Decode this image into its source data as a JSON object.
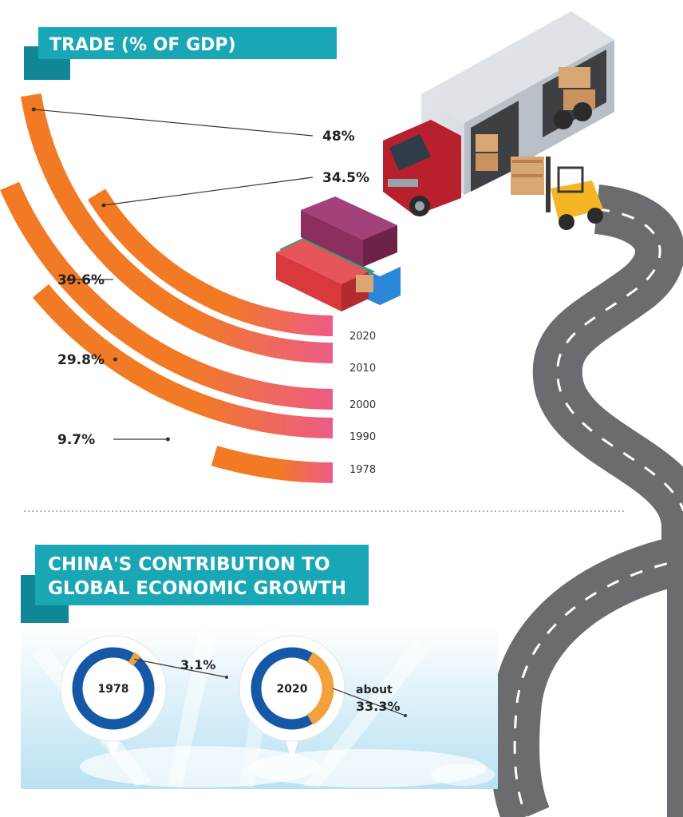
{
  "trade_section": {
    "title": "TRADE (% OF GDP)"
  },
  "contribution_section": {
    "title_line1": "CHINA'S CONTRIBUTION TO",
    "title_line2": "GLOBAL ECONOMIC GROWTH"
  },
  "colors": {
    "teal": "#19a7b5",
    "teal_dark": "#0f8796",
    "orange": "#f27a24",
    "pink": "#ec5b87",
    "blue": "#1658a8",
    "light_orange": "#f2a13d",
    "road": "#6b6c6f"
  },
  "chart_data": [
    {
      "type": "bar",
      "title": "TRADE (% OF GDP)",
      "categories": [
        "1978",
        "1990",
        "2000",
        "2010",
        "2020"
      ],
      "values": [
        9.7,
        29.8,
        39.6,
        48,
        34.5
      ],
      "value_labels": [
        "9.7%",
        "29.8%",
        "39.6%",
        "48%",
        "34.5%"
      ],
      "style": "radial arcs"
    },
    {
      "type": "pie",
      "title": "CHINA'S CONTRIBUTION TO GLOBAL ECONOMIC GROWTH",
      "charts": [
        {
          "label": "1978",
          "value": 3.1,
          "value_label": "3.1%"
        },
        {
          "label": "2020",
          "value": 33.3,
          "value_label_prefix": "about",
          "value_label": "33.3%"
        }
      ]
    }
  ]
}
